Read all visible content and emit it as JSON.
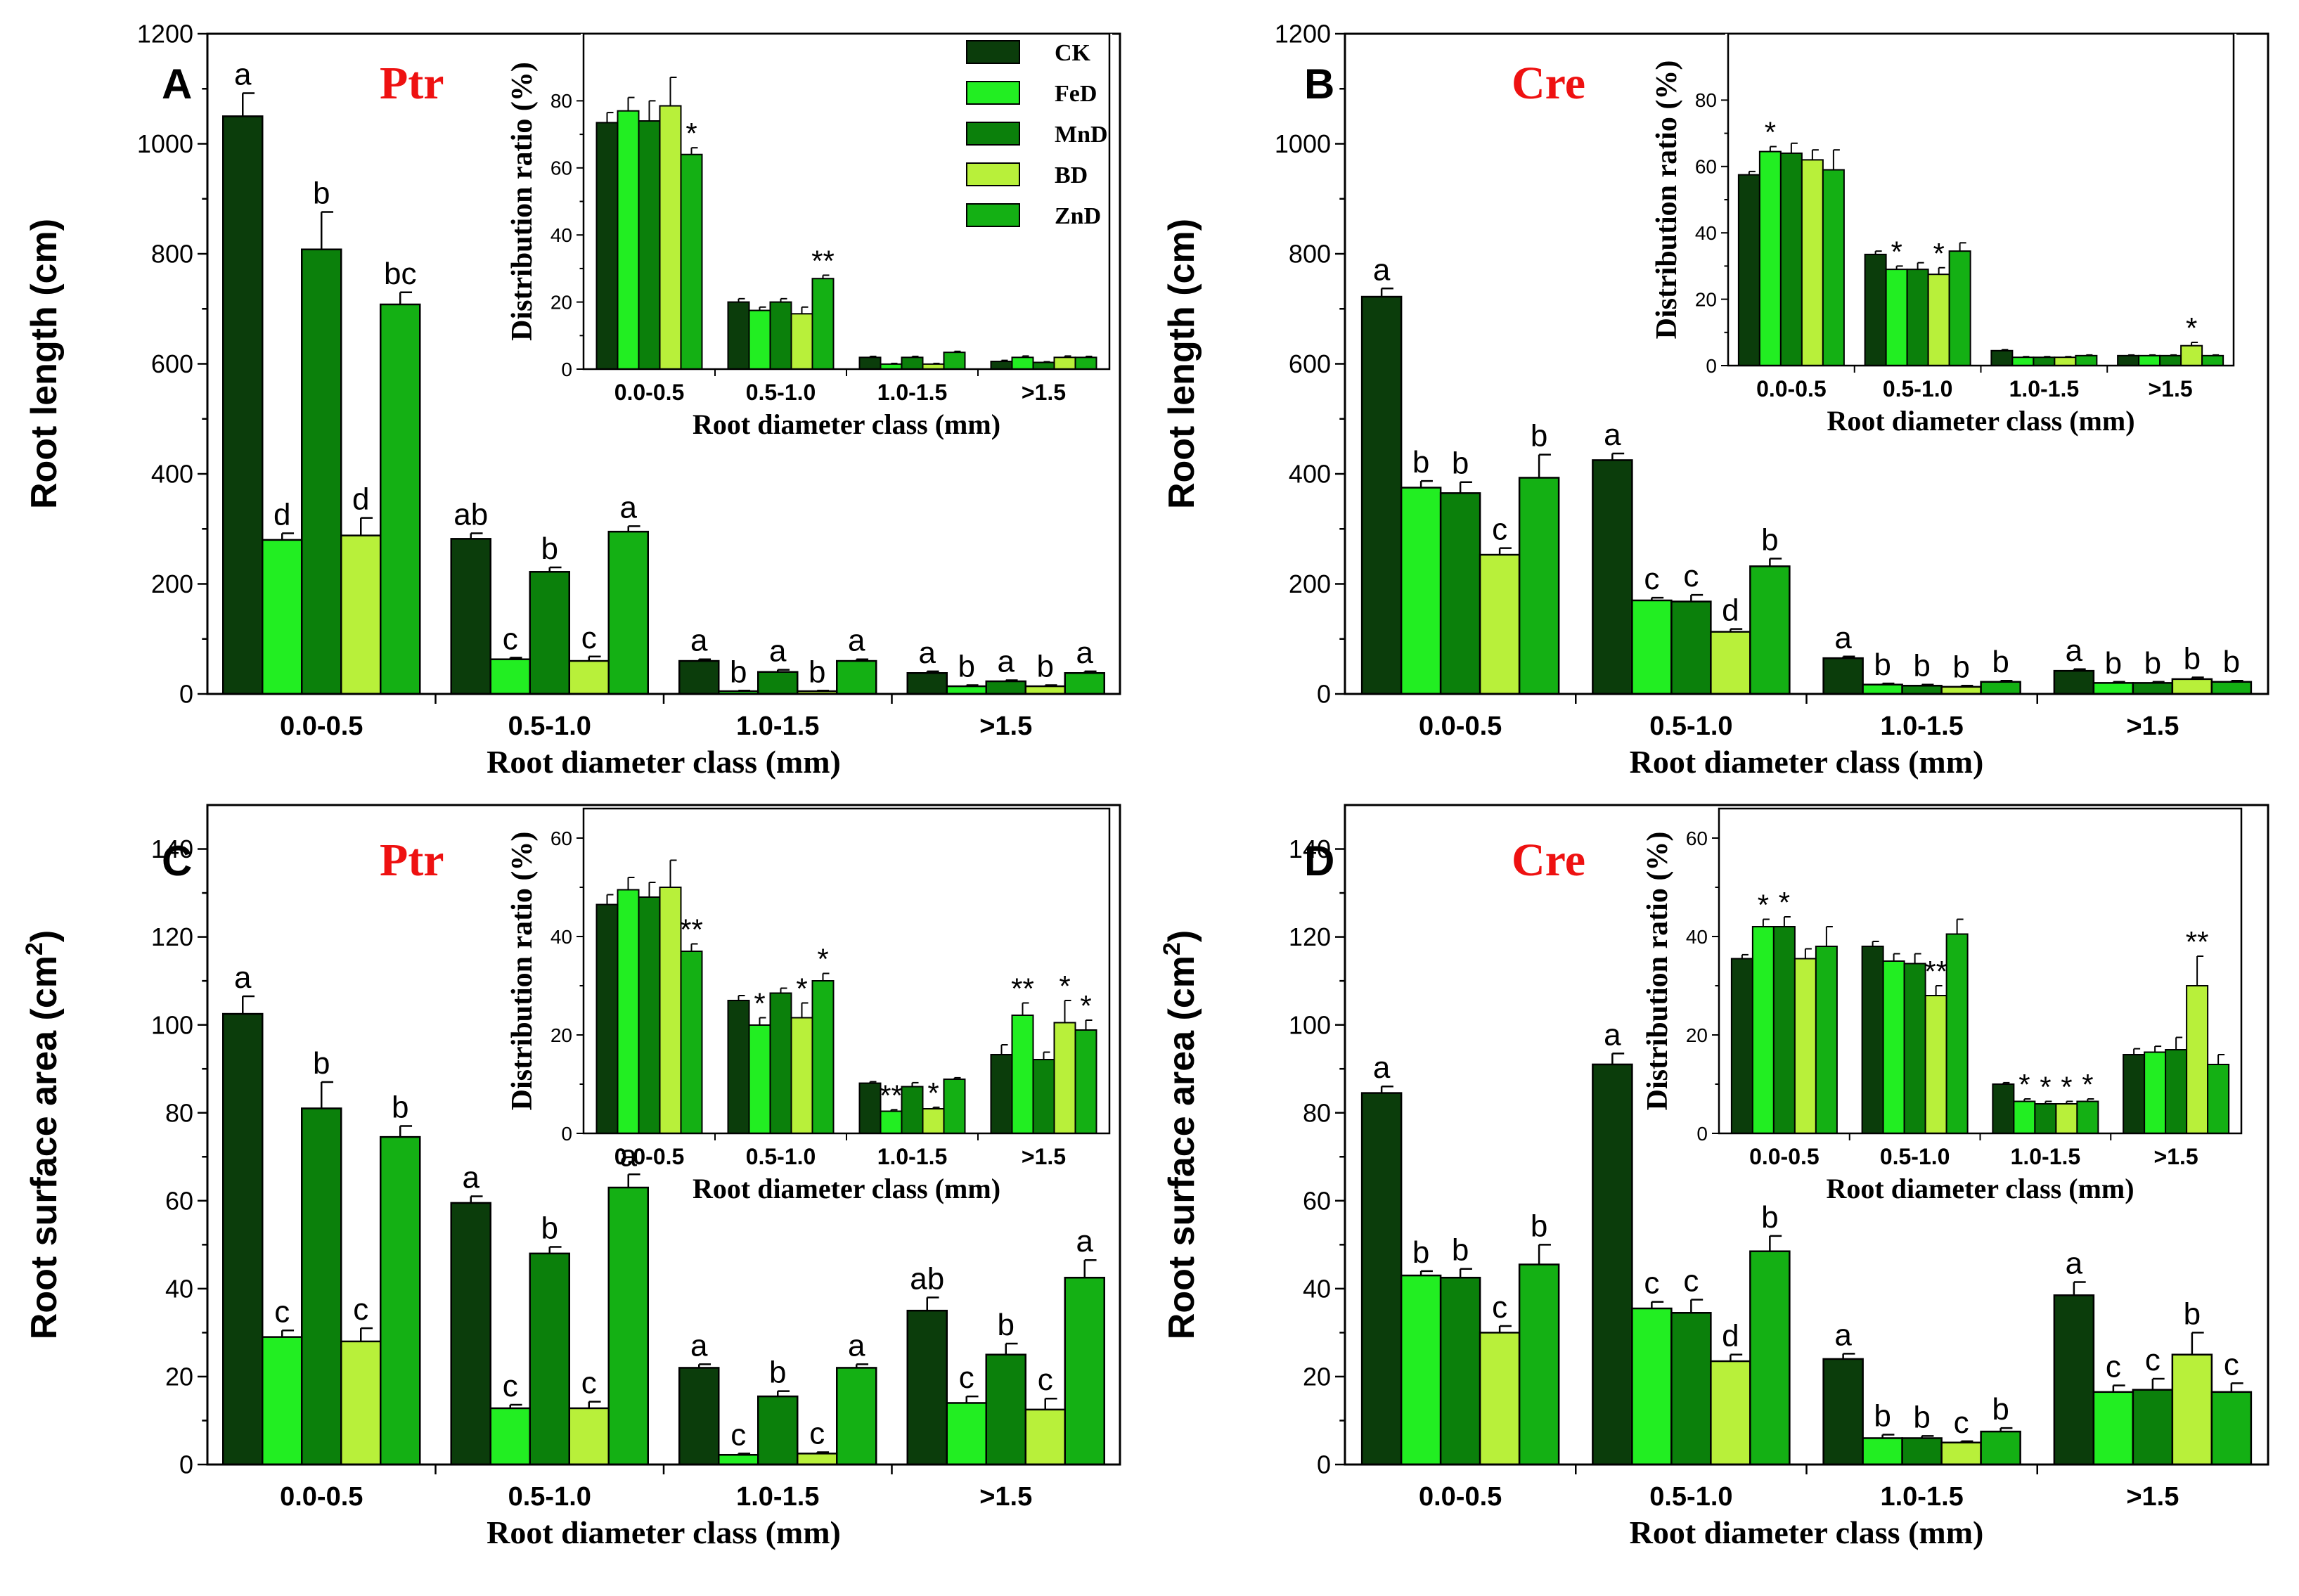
{
  "colors": {
    "CK": "#0b3d0b",
    "FeD": "#22ee22",
    "MnD": "#0b800b",
    "BD": "#b8f03a",
    "ZnD": "#14b014"
  },
  "legend": [
    "CK",
    "FeD",
    "MnD",
    "BD",
    "ZnD"
  ],
  "chart_data": [
    {
      "panel": "A",
      "species": "Ptr",
      "type": "bar",
      "ylabel": "Root length (cm)",
      "xlabel": "Root diameter class (mm)",
      "ylim": [
        0,
        1200
      ],
      "yticks": [
        0,
        200,
        400,
        600,
        800,
        1000,
        1200
      ],
      "categories": [
        "0.0-0.5",
        "0.5-1.0",
        "1.0-1.5",
        ">1.5"
      ],
      "series": [
        {
          "name": "CK",
          "values": [
            1050,
            282,
            60,
            38
          ],
          "errors": [
            42,
            10,
            3,
            3
          ],
          "labels": [
            "a",
            "ab",
            "a",
            "a"
          ]
        },
        {
          "name": "FeD",
          "values": [
            280,
            63,
            5,
            14
          ],
          "errors": [
            12,
            3,
            1,
            2
          ],
          "labels": [
            "d",
            "c",
            "b",
            "b"
          ]
        },
        {
          "name": "MnD",
          "values": [
            808,
            222,
            40,
            23
          ],
          "errors": [
            68,
            8,
            4,
            2
          ],
          "labels": [
            "b",
            "b",
            "a",
            "a"
          ]
        },
        {
          "name": "BD",
          "values": [
            288,
            60,
            5,
            14
          ],
          "errors": [
            32,
            8,
            1,
            2
          ],
          "labels": [
            "d",
            "c",
            "b",
            "b"
          ]
        },
        {
          "name": "ZnD",
          "values": [
            708,
            295,
            60,
            38
          ],
          "errors": [
            22,
            10,
            3,
            3
          ],
          "labels": [
            "bc",
            "a",
            "a",
            "a"
          ]
        }
      ],
      "inset": {
        "ylabel": "Distribution ratio (%)",
        "xlabel": "Root diameter class (mm)",
        "ylim": [
          0,
          100
        ],
        "yticks": [
          0,
          20,
          40,
          60,
          80
        ],
        "categories": [
          "0.0-0.5",
          "0.5-1.0",
          "1.0-1.5",
          ">1.5"
        ],
        "series": [
          {
            "name": "CK",
            "values": [
              73.5,
              20,
              3.5,
              2.3
            ],
            "errors": [
              3,
              1,
              0.3,
              0.3
            ],
            "labels": [
              "",
              "",
              "",
              ""
            ]
          },
          {
            "name": "FeD",
            "values": [
              77,
              17.5,
              1.5,
              3.5
            ],
            "errors": [
              4,
              1,
              0.2,
              0.4
            ],
            "labels": [
              "",
              "",
              "",
              ""
            ]
          },
          {
            "name": "MnD",
            "values": [
              74,
              20,
              3.5,
              2
            ],
            "errors": [
              6,
              1,
              0.3,
              0.2
            ],
            "labels": [
              "",
              "",
              "",
              ""
            ]
          },
          {
            "name": "BD",
            "values": [
              78.5,
              16.5,
              1.5,
              3.5
            ],
            "errors": [
              8.5,
              2,
              0.2,
              0.4
            ],
            "labels": [
              "",
              "",
              "",
              ""
            ]
          },
          {
            "name": "ZnD",
            "values": [
              64,
              27,
              5,
              3.5
            ],
            "errors": [
              2,
              1,
              0.3,
              0.3
            ],
            "labels": [
              "*",
              "**",
              "",
              ""
            ]
          }
        ]
      }
    },
    {
      "panel": "B",
      "species": "Cre",
      "type": "bar",
      "ylabel": "Root length (cm)",
      "xlabel": "Root diameter class (mm)",
      "ylim": [
        0,
        1200
      ],
      "yticks": [
        0,
        200,
        400,
        600,
        800,
        1000,
        1200
      ],
      "categories": [
        "0.0-0.5",
        "0.5-1.0",
        "1.0-1.5",
        ">1.5"
      ],
      "series": [
        {
          "name": "CK",
          "values": [
            722,
            425,
            65,
            42
          ],
          "errors": [
            15,
            12,
            3,
            3
          ],
          "labels": [
            "a",
            "a",
            "a",
            "a"
          ]
        },
        {
          "name": "FeD",
          "values": [
            375,
            170,
            17,
            20
          ],
          "errors": [
            12,
            5,
            2,
            2
          ],
          "labels": [
            "b",
            "c",
            "b",
            "b"
          ]
        },
        {
          "name": "MnD",
          "values": [
            365,
            168,
            15,
            20
          ],
          "errors": [
            20,
            12,
            2,
            2
          ],
          "labels": [
            "b",
            "c",
            "b",
            "b"
          ]
        },
        {
          "name": "BD",
          "values": [
            253,
            113,
            13,
            27
          ],
          "errors": [
            12,
            5,
            2,
            3
          ],
          "labels": [
            "c",
            "d",
            "b",
            "b"
          ]
        },
        {
          "name": "ZnD",
          "values": [
            393,
            232,
            22,
            22
          ],
          "errors": [
            42,
            14,
            2,
            2
          ],
          "labels": [
            "b",
            "b",
            "b",
            "b"
          ]
        }
      ],
      "inset": {
        "ylabel": "Distribution ratio (%)",
        "xlabel": "Root diameter class (mm)",
        "ylim": [
          0,
          100
        ],
        "yticks": [
          0,
          20,
          40,
          60,
          80
        ],
        "categories": [
          "0.0-0.5",
          "0.5-1.0",
          "1.0-1.5",
          ">1.5"
        ],
        "series": [
          {
            "name": "CK",
            "values": [
              57.5,
              33.5,
              4.5,
              3
            ],
            "errors": [
              1,
              1,
              0.3,
              0.2
            ],
            "labels": [
              "",
              "",
              "",
              ""
            ]
          },
          {
            "name": "FeD",
            "values": [
              64.5,
              29,
              2.5,
              3
            ],
            "errors": [
              1.5,
              1,
              0.2,
              0.2
            ],
            "labels": [
              "*",
              "*",
              "",
              ""
            ]
          },
          {
            "name": "MnD",
            "values": [
              64,
              29,
              2.5,
              3
            ],
            "errors": [
              3,
              2,
              0.2,
              0.2
            ],
            "labels": [
              "",
              "",
              "",
              ""
            ]
          },
          {
            "name": "BD",
            "values": [
              62,
              27.5,
              2.5,
              6
            ],
            "errors": [
              3,
              2,
              0.2,
              1
            ],
            "labels": [
              "",
              "*",
              "",
              "*"
            ]
          },
          {
            "name": "ZnD",
            "values": [
              59,
              34.5,
              3,
              3
            ],
            "errors": [
              6,
              2.5,
              0.2,
              0.2
            ],
            "labels": [
              "",
              "",
              "",
              ""
            ]
          }
        ]
      }
    },
    {
      "panel": "C",
      "species": "Ptr",
      "type": "bar",
      "ylabel": "Root surface area (cm",
      "ylabel_sup": "2",
      "ylabel_end": ")",
      "xlabel": "Root diameter class (mm)",
      "ylim": [
        0,
        150
      ],
      "yticks": [
        0,
        20,
        40,
        60,
        80,
        100,
        120,
        140
      ],
      "categories": [
        "0.0-0.5",
        "0.5-1.0",
        "1.0-1.5",
        ">1.5"
      ],
      "series": [
        {
          "name": "CK",
          "values": [
            102.5,
            59.5,
            22,
            35
          ],
          "errors": [
            4,
            1.5,
            0.8,
            3
          ],
          "labels": [
            "a",
            "a",
            "a",
            "ab"
          ]
        },
        {
          "name": "FeD",
          "values": [
            29,
            12.8,
            2.2,
            14
          ],
          "errors": [
            1.5,
            0.8,
            0.3,
            1.5
          ],
          "labels": [
            "c",
            "c",
            "c",
            "c"
          ]
        },
        {
          "name": "MnD",
          "values": [
            81,
            48,
            15.5,
            25
          ],
          "errors": [
            6,
            1.5,
            1.2,
            2.5
          ],
          "labels": [
            "b",
            "b",
            "b",
            "b"
          ]
        },
        {
          "name": "BD",
          "values": [
            28,
            12.8,
            2.5,
            12.5
          ],
          "errors": [
            3,
            1.5,
            0.3,
            2.5
          ],
          "labels": [
            "c",
            "c",
            "c",
            "c"
          ]
        },
        {
          "name": "ZnD",
          "values": [
            74.5,
            63,
            22,
            42.5
          ],
          "errors": [
            2.5,
            3,
            0.8,
            4
          ],
          "labels": [
            "b",
            "a",
            "a",
            "a"
          ]
        }
      ],
      "inset": {
        "ylabel": "Distribution ratio (%)",
        "xlabel": "Root diameter class (mm)",
        "ylim": [
          0,
          66
        ],
        "yticks": [
          0,
          20,
          40,
          60
        ],
        "categories": [
          "0.0-0.5",
          "0.5-1.0",
          "1.0-1.5",
          ">1.5"
        ],
        "series": [
          {
            "name": "CK",
            "values": [
              46.5,
              27,
              10.2,
              16
            ],
            "errors": [
              2,
              1,
              0.3,
              2
            ],
            "labels": [
              "",
              "",
              "",
              ""
            ]
          },
          {
            "name": "FeD",
            "values": [
              49.5,
              22,
              4.5,
              24
            ],
            "errors": [
              2.5,
              1.5,
              0.3,
              2.5
            ],
            "labels": [
              "",
              "*",
              "**",
              "**"
            ]
          },
          {
            "name": "MnD",
            "values": [
              48,
              28.5,
              9.5,
              15
            ],
            "errors": [
              3,
              1,
              0.8,
              1.5
            ],
            "labels": [
              "",
              "",
              "",
              ""
            ]
          },
          {
            "name": "BD",
            "values": [
              50,
              23.5,
              5,
              22.5
            ],
            "errors": [
              5.5,
              3,
              0.3,
              4.5
            ],
            "labels": [
              "",
              "*",
              "*",
              "*"
            ]
          },
          {
            "name": "ZnD",
            "values": [
              37,
              31,
              11,
              21
            ],
            "errors": [
              1.5,
              1.5,
              0.3,
              2
            ],
            "labels": [
              "**",
              "*",
              "",
              "*"
            ]
          }
        ]
      }
    },
    {
      "panel": "D",
      "species": "Cre",
      "type": "bar",
      "ylabel": "Root surface area (cm",
      "ylabel_sup": "2",
      "ylabel_end": ")",
      "xlabel": "Root diameter class (mm)",
      "ylim": [
        0,
        150
      ],
      "yticks": [
        0,
        20,
        40,
        60,
        80,
        100,
        120,
        140
      ],
      "categories": [
        "0.0-0.5",
        "0.5-1.0",
        "1.0-1.5",
        ">1.5"
      ],
      "series": [
        {
          "name": "CK",
          "values": [
            84.5,
            91,
            24,
            38.5
          ],
          "errors": [
            1.5,
            2.5,
            1.2,
            3
          ],
          "labels": [
            "a",
            "a",
            "a",
            "a"
          ]
        },
        {
          "name": "FeD",
          "values": [
            43,
            35.5,
            6,
            16.5
          ],
          "errors": [
            1,
            1.5,
            0.8,
            1.5
          ],
          "labels": [
            "b",
            "c",
            "b",
            "c"
          ]
        },
        {
          "name": "MnD",
          "values": [
            42.5,
            34.5,
            6,
            17
          ],
          "errors": [
            2,
            3,
            0.5,
            2.5
          ],
          "labels": [
            "b",
            "c",
            "b",
            "c"
          ]
        },
        {
          "name": "BD",
          "values": [
            30,
            23.5,
            5,
            25
          ],
          "errors": [
            1.5,
            1.5,
            0.3,
            5
          ],
          "labels": [
            "c",
            "d",
            "c",
            "b"
          ]
        },
        {
          "name": "ZnD",
          "values": [
            45.5,
            48.5,
            7.5,
            16.5
          ],
          "errors": [
            4.5,
            3.5,
            0.8,
            2
          ],
          "labels": [
            "b",
            "b",
            "b",
            "c"
          ]
        }
      ],
      "inset": {
        "ylabel": "Distribution ratio (%)",
        "xlabel": "Root diameter class (mm)",
        "ylim": [
          0,
          66
        ],
        "yticks": [
          0,
          20,
          40,
          60
        ],
        "categories": [
          "0.0-0.5",
          "0.5-1.0",
          "1.0-1.5",
          ">1.5"
        ],
        "series": [
          {
            "name": "CK",
            "values": [
              35.5,
              38,
              10,
              16
            ],
            "errors": [
              0.8,
              1,
              0.3,
              1.2
            ],
            "labels": [
              "",
              "",
              "",
              ""
            ]
          },
          {
            "name": "FeD",
            "values": [
              42,
              35,
              6.5,
              16.5
            ],
            "errors": [
              1.5,
              1.5,
              0.5,
              1.2
            ],
            "labels": [
              "*",
              "",
              "*",
              ""
            ]
          },
          {
            "name": "MnD",
            "values": [
              42,
              34.5,
              6,
              17
            ],
            "errors": [
              2,
              2,
              0.5,
              2.5
            ],
            "labels": [
              "*",
              "",
              "*",
              ""
            ]
          },
          {
            "name": "BD",
            "values": [
              35.5,
              28,
              6,
              30
            ],
            "errors": [
              2,
              2,
              0.5,
              6
            ],
            "labels": [
              "",
              "**",
              "*",
              "**"
            ]
          },
          {
            "name": "ZnD",
            "values": [
              38,
              40.5,
              6.5,
              14
            ],
            "errors": [
              4,
              3,
              0.5,
              2
            ],
            "labels": [
              "",
              "",
              "*",
              ""
            ]
          }
        ]
      }
    }
  ]
}
